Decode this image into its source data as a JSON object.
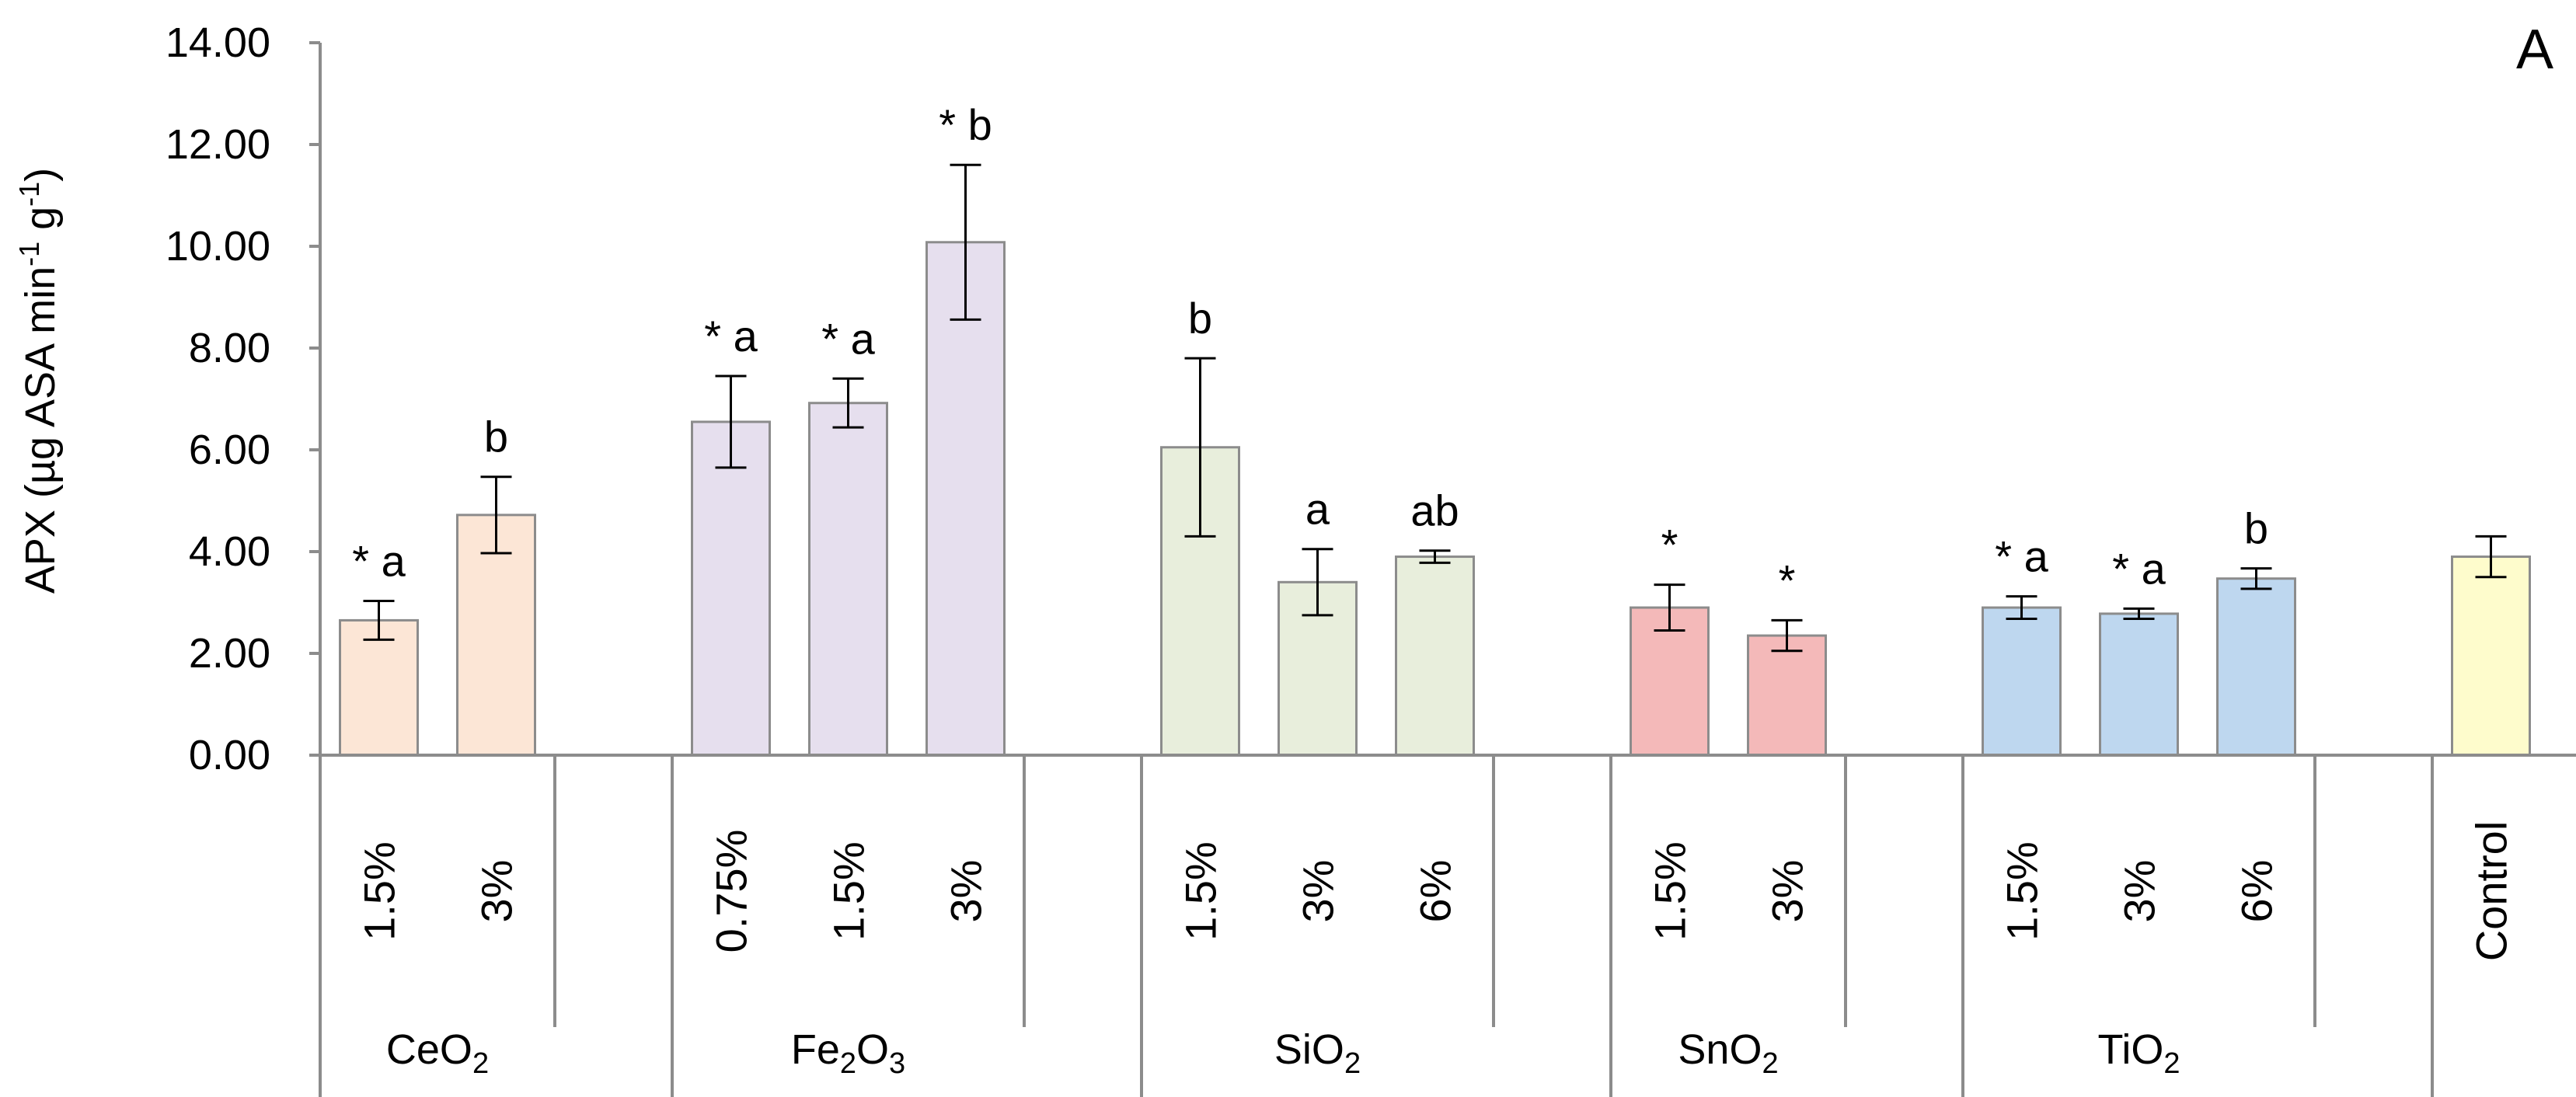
{
  "chart_data": {
    "type": "bar",
    "panel_label": "A",
    "ylabel": "APX (µg ASA min",
    "ylabel_sup1": "-1",
    "ylabel_mid": " g",
    "ylabel_sup2": "-1",
    "ylabel_end": ")",
    "ylim": [
      0,
      14
    ],
    "yticks": [
      "0.00",
      "2.00",
      "4.00",
      "6.00",
      "8.00",
      "10.00",
      "12.00",
      "14.00"
    ],
    "ytick_values": [
      0,
      2,
      4,
      6,
      8,
      10,
      12,
      14
    ],
    "groups": [
      {
        "name": "CeO",
        "sub": "2",
        "sub2": "",
        "color": "#fce6d6",
        "bars": [
          {
            "label": "1.5%",
            "value": 2.65,
            "error": 0.38,
            "annotation": "* a"
          },
          {
            "label": "3%",
            "value": 4.72,
            "error": 0.75,
            "annotation": "b"
          }
        ]
      },
      {
        "name": "Fe",
        "sub": "2",
        "mid": "O",
        "sub2": "3",
        "color": "#e6dfee",
        "bars": [
          {
            "label": "0.75%",
            "value": 6.55,
            "error": 0.9,
            "annotation": "* a"
          },
          {
            "label": "1.5%",
            "value": 6.92,
            "error": 0.48,
            "annotation": "* a"
          },
          {
            "label": "3%",
            "value": 10.08,
            "error": 1.52,
            "annotation": "* b"
          }
        ]
      },
      {
        "name": "SiO",
        "sub": "2",
        "sub2": "",
        "color": "#e8eedc",
        "bars": [
          {
            "label": "1.5%",
            "value": 6.05,
            "error": 1.75,
            "annotation": "b"
          },
          {
            "label": "3%",
            "value": 3.4,
            "error": 0.65,
            "annotation": "a"
          },
          {
            "label": "6%",
            "value": 3.9,
            "error": 0.12,
            "annotation": "ab"
          }
        ]
      },
      {
        "name": "SnO",
        "sub": "2",
        "sub2": "",
        "color": "#f4b9b9",
        "bars": [
          {
            "label": "1.5%",
            "value": 2.9,
            "error": 0.45,
            "annotation": "*"
          },
          {
            "label": "3%",
            "value": 2.35,
            "error": 0.3,
            "annotation": "*"
          }
        ]
      },
      {
        "name": "TiO",
        "sub": "2",
        "sub2": "",
        "color": "#bed7ef",
        "bars": [
          {
            "label": "1.5%",
            "value": 2.9,
            "error": 0.22,
            "annotation": "* a"
          },
          {
            "label": "3%",
            "value": 2.78,
            "error": 0.1,
            "annotation": "* a"
          },
          {
            "label": "6%",
            "value": 3.47,
            "error": 0.2,
            "annotation": "b"
          }
        ]
      },
      {
        "name": "",
        "sub": "",
        "sub2": "",
        "color": "#fefccc",
        "bars": [
          {
            "label": "Control",
            "value": 3.9,
            "error": 0.4,
            "annotation": ""
          }
        ]
      }
    ],
    "colors": {
      "axis": "#8c8c8c",
      "bar_edge": "#8c8c8c",
      "error": "#000000"
    }
  }
}
